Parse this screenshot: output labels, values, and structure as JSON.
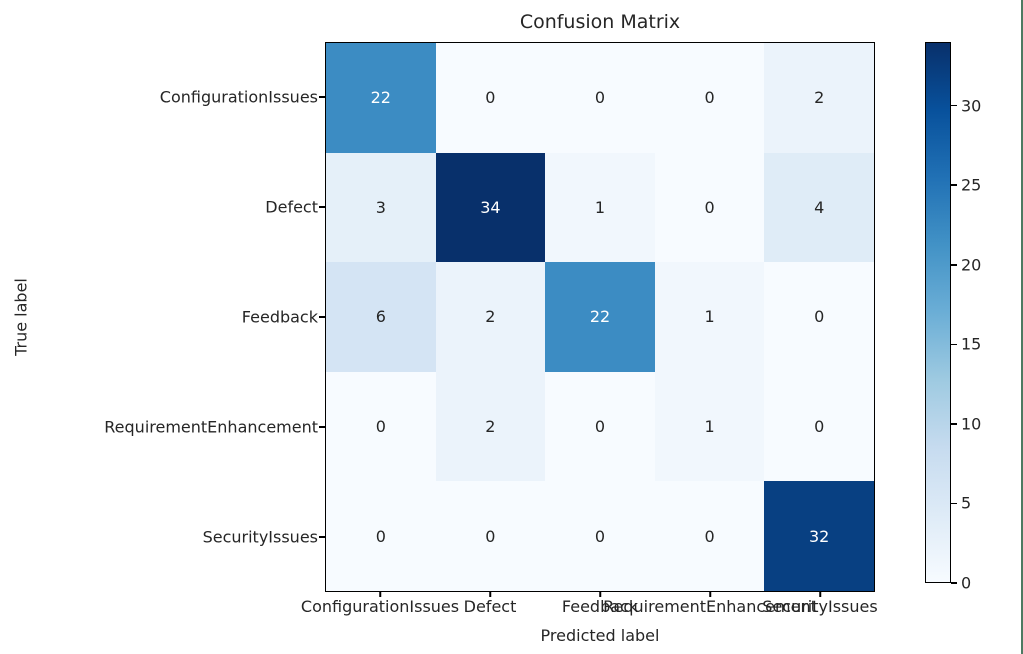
{
  "chart_data": {
    "type": "heatmap",
    "title": "Confusion Matrix",
    "xlabel": "Predicted label",
    "ylabel": "True label",
    "categories": [
      "ConfigurationIssues",
      "Defect",
      "Feedback",
      "RequirementEnhancement",
      "SecurityIssues"
    ],
    "matrix": [
      [
        22,
        0,
        0,
        0,
        2
      ],
      [
        3,
        34,
        1,
        0,
        4
      ],
      [
        6,
        2,
        22,
        1,
        0
      ],
      [
        0,
        2,
        0,
        1,
        0
      ],
      [
        0,
        0,
        0,
        0,
        32
      ]
    ],
    "vmin": 0,
    "vmax": 34,
    "colormap": "Blues",
    "colorbar_ticks": [
      0,
      5,
      10,
      15,
      20,
      25,
      30
    ],
    "legend_position": "right-colorbar",
    "grid": false
  },
  "colors": {
    "text": "#262626",
    "cell_text_light": "#ffffff",
    "spine": "#000000",
    "max_cell": "#08306b",
    "min_cell": "#f7fbff",
    "window_edge": "#4d7a62",
    "background": "#ffffff"
  }
}
